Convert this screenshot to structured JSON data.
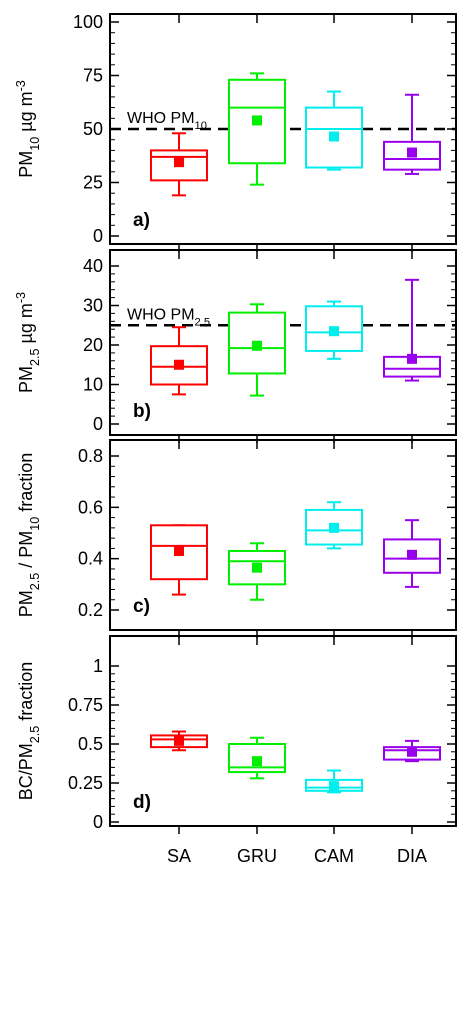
{
  "chart_data": [
    {
      "type": "box",
      "panel_tag": "a)",
      "ylabel_parts": [
        {
          "t": "PM",
          "s": "base"
        },
        {
          "t": "10",
          "s": "sub"
        },
        {
          "t": "  µg m",
          "s": "base"
        },
        {
          "t": "-3",
          "s": "sup"
        }
      ],
      "ylim": [
        0,
        100
      ],
      "yticks": [
        0,
        25,
        50,
        75,
        100
      ],
      "reference": {
        "value": 50,
        "label_parts": [
          {
            "t": "WHO PM",
            "s": "base"
          },
          {
            "t": "10",
            "s": "sub"
          }
        ]
      },
      "boxes": [
        {
          "category": "SA",
          "color": "#ff0000",
          "whisker_low": 19,
          "q1": 26,
          "median": 37,
          "q3": 40,
          "whisker_high": 48,
          "mean": 34.5
        },
        {
          "category": "GRU",
          "color": "#00ee00",
          "whisker_low": 24,
          "q1": 34,
          "median": 60,
          "q3": 73,
          "whisker_high": 76,
          "mean": 54
        },
        {
          "category": "CAM",
          "color": "#00eeee",
          "whisker_low": 31,
          "q1": 32,
          "median": 50,
          "q3": 60,
          "whisker_high": 67.5,
          "mean": 46.5
        },
        {
          "category": "DIA",
          "color": "#9900ee",
          "whisker_low": 29,
          "q1": 31,
          "median": 36,
          "q3": 44,
          "whisker_high": 66,
          "mean": 39
        }
      ]
    },
    {
      "type": "box",
      "panel_tag": "b)",
      "ylabel_parts": [
        {
          "t": "PM",
          "s": "base"
        },
        {
          "t": "2.5",
          "s": "sub"
        },
        {
          "t": " µg m",
          "s": "base"
        },
        {
          "t": "-3",
          "s": "sup"
        }
      ],
      "ylim": [
        0,
        40
      ],
      "yticks": [
        0,
        10,
        20,
        30,
        40
      ],
      "reference": {
        "value": 25,
        "label_parts": [
          {
            "t": "WHO PM",
            "s": "base"
          },
          {
            "t": "2.5",
            "s": "sub"
          }
        ]
      },
      "boxes": [
        {
          "category": "SA",
          "color": "#ff0000",
          "whisker_low": 7.5,
          "q1": 10,
          "median": 14.5,
          "q3": 19.7,
          "whisker_high": 24.5,
          "mean": 15
        },
        {
          "category": "GRU",
          "color": "#00ee00",
          "whisker_low": 7.2,
          "q1": 12.8,
          "median": 19.2,
          "q3": 28.2,
          "whisker_high": 30.3,
          "mean": 19.8
        },
        {
          "category": "CAM",
          "color": "#00eeee",
          "whisker_low": 16.5,
          "q1": 18.5,
          "median": 23.2,
          "q3": 29.8,
          "whisker_high": 31,
          "mean": 23.5
        },
        {
          "category": "DIA",
          "color": "#9900ee",
          "whisker_low": 11,
          "q1": 12,
          "median": 14,
          "q3": 17,
          "whisker_high": 36.5,
          "mean": 16.5
        }
      ]
    },
    {
      "type": "box",
      "panel_tag": "c)",
      "ylabel_parts": [
        {
          "t": "PM",
          "s": "base"
        },
        {
          "t": "2.5",
          "s": "sub"
        },
        {
          "t": " / PM",
          "s": "base"
        },
        {
          "t": "10",
          "s": "sub"
        },
        {
          "t": " fraction",
          "s": "base"
        }
      ],
      "ylim": [
        0.2,
        0.8
      ],
      "yticks": [
        0.2,
        0.4,
        0.6,
        0.8
      ],
      "reference": null,
      "boxes": [
        {
          "category": "SA",
          "color": "#ff0000",
          "whisker_low": 0.26,
          "q1": 0.32,
          "median": 0.45,
          "q3": 0.53,
          "whisker_high": 0.53,
          "mean": 0.43
        },
        {
          "category": "GRU",
          "color": "#00ee00",
          "whisker_low": 0.24,
          "q1": 0.3,
          "median": 0.39,
          "q3": 0.43,
          "whisker_high": 0.46,
          "mean": 0.365
        },
        {
          "category": "CAM",
          "color": "#00eeee",
          "whisker_low": 0.44,
          "q1": 0.455,
          "median": 0.51,
          "q3": 0.59,
          "whisker_high": 0.62,
          "mean": 0.52
        },
        {
          "category": "DIA",
          "color": "#9900ee",
          "whisker_low": 0.29,
          "q1": 0.345,
          "median": 0.4,
          "q3": 0.475,
          "whisker_high": 0.55,
          "mean": 0.415
        }
      ]
    },
    {
      "type": "box",
      "panel_tag": "d)",
      "ylabel_parts": [
        {
          "t": "BC/PM",
          "s": "base"
        },
        {
          "t": "2.5",
          "s": "sub"
        },
        {
          "t": " fraction",
          "s": "base"
        }
      ],
      "ylim": [
        0,
        1
      ],
      "yticks": [
        0,
        0.25,
        0.5,
        0.75,
        1
      ],
      "ytick_labels": [
        "0",
        "0.25",
        "0.5",
        "0.75",
        "1"
      ],
      "reference": null,
      "boxes": [
        {
          "category": "SA",
          "color": "#ff0000",
          "whisker_low": 0.46,
          "q1": 0.48,
          "median": 0.53,
          "q3": 0.555,
          "whisker_high": 0.58,
          "mean": 0.52
        },
        {
          "category": "GRU",
          "color": "#00ee00",
          "whisker_low": 0.28,
          "q1": 0.32,
          "median": 0.35,
          "q3": 0.5,
          "whisker_high": 0.54,
          "mean": 0.39
        },
        {
          "category": "CAM",
          "color": "#00eeee",
          "whisker_low": 0.19,
          "q1": 0.2,
          "median": 0.22,
          "q3": 0.27,
          "whisker_high": 0.33,
          "mean": 0.23
        },
        {
          "category": "DIA",
          "color": "#9900ee",
          "whisker_low": 0.39,
          "q1": 0.4,
          "median": 0.46,
          "q3": 0.48,
          "whisker_high": 0.52,
          "mean": 0.45
        }
      ]
    }
  ],
  "categories": [
    "SA",
    "GRU",
    "CAM",
    "DIA"
  ]
}
